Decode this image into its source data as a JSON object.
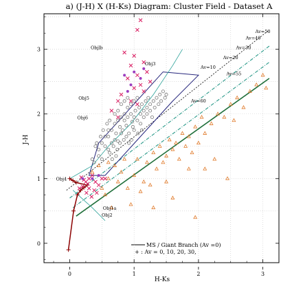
{
  "chart_data": {
    "type": "scatter",
    "title": "a) (J-H) X (H-Ks) Diagram: Cluster Field - Dataset A",
    "xlabel": "H-Ks",
    "ylabel": "J-H",
    "xlim": [
      -0.4,
      3.25
    ],
    "ylim": [
      -0.3,
      3.55
    ],
    "xticks": [
      "0",
      "1",
      "2",
      "3"
    ],
    "yticks": [
      "0",
      "1",
      "2",
      "3"
    ],
    "grid": true,
    "legend_position": "bottom-center",
    "legend": {
      "line_label": "MS / Giant Branch (Av =0)",
      "marker_label": "+ : Av = 0, 10, 20, 30,"
    },
    "colors": {
      "cluster_members": "#777777",
      "field_stars": "#e07a2a",
      "ms_giant_branch": "#8b0000",
      "reddening_band": "#1f6f3a",
      "av_band": "#2a9a8a",
      "polygon": "#23237a",
      "young_objects": "#d81b60",
      "extra_points": "#9b3dbf"
    },
    "series": [
      {
        "name": "MS / Giant Branch (Av =0)",
        "type": "line",
        "points": [
          [
            -0.02,
            -0.1
          ],
          [
            0.06,
            0.5
          ],
          [
            0.12,
            0.75
          ],
          [
            0.17,
            0.82
          ],
          [
            0.22,
            0.86
          ],
          [
            0.27,
            0.9
          ],
          [
            0.1,
            0.94
          ],
          [
            0.05,
            0.97
          ],
          [
            0.0,
            1.0
          ]
        ]
      },
      {
        "type": "scatter",
        "points": [
          [
            0.55,
            1.5
          ],
          [
            0.6,
            1.45
          ],
          [
            0.65,
            1.55
          ],
          [
            0.7,
            1.6
          ],
          [
            0.72,
            1.7
          ],
          [
            0.75,
            1.58
          ],
          [
            0.8,
            1.7
          ],
          [
            0.78,
            1.8
          ],
          [
            0.82,
            1.75
          ],
          [
            0.85,
            1.9
          ],
          [
            0.88,
            1.82
          ],
          [
            0.9,
            1.95
          ],
          [
            0.92,
            1.7
          ],
          [
            0.95,
            2.0
          ],
          [
            0.97,
            1.88
          ],
          [
            1.0,
            1.95
          ],
          [
            1.02,
            2.05
          ],
          [
            1.05,
            1.9
          ],
          [
            1.08,
            2.1
          ],
          [
            1.1,
            2.0
          ],
          [
            1.12,
            2.15
          ],
          [
            1.15,
            2.05
          ],
          [
            1.18,
            2.2
          ],
          [
            1.2,
            2.1
          ],
          [
            1.22,
            2.25
          ],
          [
            1.25,
            2.15
          ],
          [
            1.3,
            2.2
          ],
          [
            1.35,
            2.25
          ],
          [
            1.4,
            2.3
          ],
          [
            1.45,
            2.35
          ],
          [
            0.6,
            1.65
          ],
          [
            0.65,
            1.75
          ],
          [
            0.7,
            1.85
          ],
          [
            0.75,
            1.9
          ],
          [
            0.8,
            1.95
          ],
          [
            0.85,
            2.0
          ],
          [
            0.9,
            2.1
          ],
          [
            0.95,
            2.15
          ],
          [
            1.0,
            2.2
          ],
          [
            1.05,
            2.25
          ],
          [
            0.5,
            1.55
          ],
          [
            0.45,
            1.45
          ],
          [
            0.55,
            1.65
          ],
          [
            0.6,
            1.75
          ],
          [
            0.62,
            1.4
          ],
          [
            0.68,
            1.5
          ],
          [
            0.74,
            1.45
          ],
          [
            0.84,
            1.6
          ],
          [
            0.88,
            1.65
          ],
          [
            0.98,
            1.8
          ],
          [
            1.0,
            1.75
          ],
          [
            1.1,
            1.85
          ],
          [
            1.15,
            1.95
          ],
          [
            1.2,
            2.0
          ],
          [
            1.25,
            2.05
          ],
          [
            1.28,
            1.95
          ],
          [
            0.7,
            2.0
          ],
          [
            0.75,
            2.05
          ],
          [
            0.8,
            2.15
          ],
          [
            0.85,
            2.2
          ],
          [
            0.9,
            2.25
          ],
          [
            0.62,
            1.9
          ],
          [
            0.58,
            1.85
          ],
          [
            0.52,
            1.75
          ],
          [
            0.48,
            1.65
          ],
          [
            0.42,
            1.55
          ],
          [
            0.4,
            1.5
          ],
          [
            0.45,
            1.35
          ],
          [
            0.5,
            1.3
          ],
          [
            0.38,
            1.25
          ],
          [
            0.35,
            1.3
          ],
          [
            1.32,
            2.1
          ],
          [
            1.38,
            2.15
          ],
          [
            1.42,
            2.2
          ],
          [
            1.48,
            2.25
          ],
          [
            1.5,
            2.3
          ],
          [
            0.92,
            1.55
          ],
          [
            0.96,
            1.6
          ],
          [
            1.06,
            1.7
          ],
          [
            1.12,
            1.75
          ],
          [
            0.78,
            1.55
          ],
          [
            0.72,
            1.35
          ],
          [
            0.66,
            1.3
          ]
        ]
      },
      {
        "type": "scatter",
        "points": [
          [
            0.35,
            1.1
          ],
          [
            0.45,
            1.2
          ],
          [
            0.5,
            0.85
          ],
          [
            0.55,
            0.75
          ],
          [
            0.6,
            1.0
          ],
          [
            0.7,
            1.2
          ],
          [
            0.75,
            0.95
          ],
          [
            0.8,
            1.1
          ],
          [
            0.85,
            1.3
          ],
          [
            0.9,
            0.85
          ],
          [
            1.0,
            1.05
          ],
          [
            1.05,
            1.3
          ],
          [
            1.1,
            0.8
          ],
          [
            1.15,
            0.95
          ],
          [
            1.2,
            1.25
          ],
          [
            1.25,
            0.9
          ],
          [
            1.3,
            1.4
          ],
          [
            1.35,
            1.15
          ],
          [
            1.4,
            1.5
          ],
          [
            1.45,
            1.25
          ],
          [
            1.5,
            1.35
          ],
          [
            1.55,
            1.6
          ],
          [
            1.6,
            1.45
          ],
          [
            1.65,
            1.55
          ],
          [
            1.7,
            1.3
          ],
          [
            1.75,
            1.7
          ],
          [
            1.8,
            1.5
          ],
          [
            1.85,
            1.65
          ],
          [
            1.9,
            1.4
          ],
          [
            1.95,
            1.8
          ],
          [
            2.0,
            1.55
          ],
          [
            2.05,
            1.95
          ],
          [
            2.1,
            1.7
          ],
          [
            2.2,
            1.85
          ],
          [
            2.3,
            2.0
          ],
          [
            2.4,
            1.95
          ],
          [
            2.5,
            2.15
          ],
          [
            2.55,
            1.9
          ],
          [
            2.6,
            2.25
          ],
          [
            2.7,
            2.1
          ],
          [
            2.8,
            2.35
          ],
          [
            2.9,
            2.45
          ],
          [
            3.0,
            2.6
          ],
          [
            3.05,
            2.4
          ],
          [
            2.45,
            1.0
          ],
          [
            1.6,
            0.7
          ],
          [
            1.3,
            0.55
          ],
          [
            2.25,
            1.3
          ],
          [
            0.6,
            1.25
          ],
          [
            1.95,
            0.4
          ],
          [
            1.85,
            1.15
          ],
          [
            2.1,
            1.15
          ],
          [
            1.5,
            0.95
          ],
          [
            0.95,
            0.6
          ],
          [
            0.65,
            0.55
          ]
        ]
      },
      {
        "type": "line",
        "points": [
          [
            -0.05,
            0.82
          ],
          [
            3.1,
            3.3
          ]
        ]
      },
      {
        "type": "line",
        "points": [
          [
            0.1,
            0.42
          ],
          [
            3.1,
            2.55
          ]
        ]
      },
      {
        "type": "line",
        "points": [
          [
            0.0,
            0.7
          ],
          [
            3.1,
            3.05
          ]
        ]
      },
      {
        "type": "line",
        "points": [
          [
            0.05,
            0.55
          ],
          [
            3.1,
            2.8
          ]
        ]
      },
      {
        "type": "polygon",
        "points": [
          [
            0.3,
            1.05
          ],
          [
            0.45,
            1.55
          ],
          [
            1.45,
            2.65
          ],
          [
            2.0,
            2.6
          ],
          [
            1.6,
            2.2
          ],
          [
            0.55,
            1.05
          ]
        ]
      },
      {
        "type": "line",
        "points": [
          [
            0.0,
            1.0
          ],
          [
            0.35,
            1.2
          ],
          [
            0.6,
            1.5
          ],
          [
            0.95,
            1.85
          ],
          [
            1.3,
            2.3
          ],
          [
            1.6,
            2.75
          ],
          [
            1.75,
            3.0
          ]
        ]
      },
      {
        "type": "line",
        "points": [
          [
            0.05,
            0.82
          ],
          [
            0.35,
            0.55
          ],
          [
            0.55,
            0.35
          ]
        ]
      },
      {
        "type": "scatter",
        "points": [
          [
            -0.02,
            -0.1
          ],
          [
            0.06,
            0.5
          ],
          [
            0.12,
            0.75
          ],
          [
            0.17,
            0.82
          ],
          [
            0.22,
            0.86
          ],
          [
            0.27,
            0.9
          ],
          [
            0.1,
            0.94
          ],
          [
            0.05,
            0.97
          ],
          [
            0.0,
            1.0
          ]
        ]
      },
      {
        "type": "scatter",
        "points": [
          [
            1.1,
            3.45
          ],
          [
            1.05,
            3.3
          ],
          [
            0.85,
            2.95
          ],
          [
            1.0,
            2.9
          ],
          [
            1.15,
            2.8
          ],
          [
            0.95,
            2.75
          ],
          [
            1.2,
            2.65
          ],
          [
            1.05,
            2.6
          ],
          [
            0.9,
            2.55
          ],
          [
            1.1,
            2.45
          ],
          [
            1.0,
            2.4
          ],
          [
            1.15,
            2.35
          ],
          [
            1.25,
            2.5
          ],
          [
            0.75,
            2.2
          ],
          [
            0.8,
            2.3
          ],
          [
            0.95,
            2.2
          ],
          [
            1.05,
            2.15
          ],
          [
            0.65,
            2.05
          ],
          [
            0.75,
            1.95
          ],
          [
            0.4,
            0.95
          ],
          [
            0.3,
            1.0
          ],
          [
            0.25,
            0.95
          ],
          [
            0.35,
            1.05
          ],
          [
            0.2,
            0.88
          ],
          [
            0.45,
            0.9
          ],
          [
            0.5,
            1.0
          ],
          [
            0.15,
            0.85
          ],
          [
            0.3,
            0.85
          ],
          [
            0.28,
            0.92
          ],
          [
            0.38,
            0.82
          ],
          [
            0.42,
            0.78
          ],
          [
            0.34,
            0.72
          ],
          [
            0.26,
            0.78
          ],
          [
            0.22,
            0.98
          ],
          [
            0.18,
            1.02
          ],
          [
            0.55,
            1.0
          ]
        ]
      },
      {
        "type": "scatter",
        "points": [
          [
            0.85,
            2.6
          ],
          [
            1.15,
            2.7
          ],
          [
            0.95,
            2.45
          ],
          [
            1.0,
            2.65
          ],
          [
            0.9,
            2.35
          ],
          [
            1.1,
            2.55
          ],
          [
            0.2,
            1.0
          ],
          [
            0.35,
            1.0
          ],
          [
            0.45,
            1.05
          ]
        ]
      }
    ],
    "annotations": [
      "Objlb",
      "Obj3",
      "Obj5",
      "Obj6",
      "Obj4",
      "Obj1a",
      "Obj2",
      "Av=10",
      "Av=20",
      "Av=30",
      "Av=40",
      "Av=50",
      "Av=55",
      "Av=60"
    ]
  }
}
